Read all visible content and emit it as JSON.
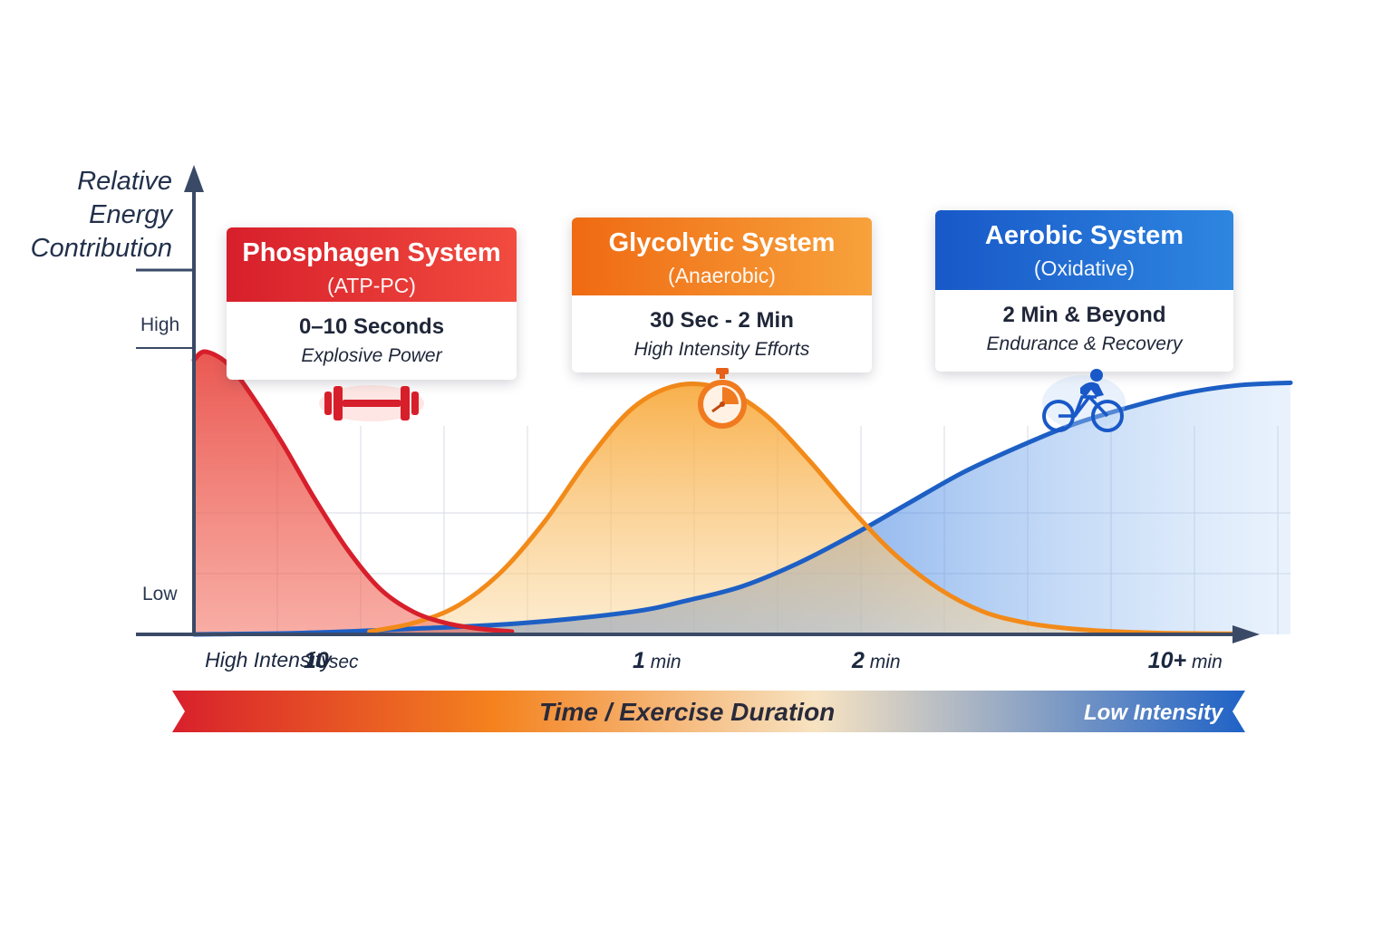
{
  "y_axis": {
    "title_lines": [
      "Relative",
      "Energy",
      "Contribution"
    ],
    "high_label": "High",
    "low_label": "Low"
  },
  "x_axis": {
    "ticks": [
      {
        "label": "High Intensity",
        "x": 0.01
      },
      {
        "label": "10",
        "suffix": "sec",
        "x": 0.1
      },
      {
        "label": "1",
        "suffix": "min",
        "x": 0.4
      },
      {
        "label": "2",
        "suffix": "min",
        "x": 0.6
      },
      {
        "label": "10+",
        "suffix": "min",
        "x": 0.87
      }
    ]
  },
  "bottom_banner": {
    "title": "Time / Exercise Duration",
    "right_label": "Low Intensity",
    "colors": [
      "#d8202c",
      "#f4821e",
      "#f7d9a6",
      "#1f62c6"
    ]
  },
  "cards": [
    {
      "id": "phosphagen",
      "title": "Phosphagen System",
      "subtitle": "(ATP-PC)",
      "range": "0–10 Seconds",
      "description": "Explosive Power",
      "color": "#d71f2b",
      "color2": "#f24b3f",
      "icon": "dumbbell-icon"
    },
    {
      "id": "glycolytic",
      "title": "Glycolytic System",
      "subtitle": "(Anaerobic)",
      "range": "30 Sec - 2 Min",
      "description": "High Intensity Efforts",
      "color": "#f06a12",
      "color2": "#f7a23c",
      "icon": "stopwatch-icon"
    },
    {
      "id": "aerobic",
      "title": "Aerobic System",
      "subtitle": "(Oxidative)",
      "range": "2 Min & Beyond",
      "description": "Endurance & Recovery",
      "color": "#1858c8",
      "color2": "#2e86e0",
      "icon": "cyclist-icon"
    }
  ],
  "chart_data": {
    "type": "area",
    "xlabel": "Time / Exercise Duration",
    "ylabel": "Relative Energy Contribution",
    "ylim": [
      0,
      1
    ],
    "x_range": [
      0,
      1
    ],
    "grid": true,
    "series": [
      {
        "name": "Phosphagen System",
        "color": "#d71f2b",
        "x": [
          0,
          0.01,
          0.03,
          0.05,
          0.08,
          0.11,
          0.14,
          0.17,
          0.2,
          0.23,
          0.26,
          0.29
        ],
        "values": [
          0.97,
          1.0,
          0.96,
          0.86,
          0.68,
          0.48,
          0.3,
          0.16,
          0.08,
          0.04,
          0.02,
          0.01
        ]
      },
      {
        "name": "Glycolytic System",
        "color": "#f28a1a",
        "x": [
          0.16,
          0.2,
          0.24,
          0.28,
          0.32,
          0.36,
          0.4,
          0.44,
          0.48,
          0.52,
          0.56,
          0.6,
          0.64,
          0.68,
          0.72,
          0.76,
          0.8,
          0.84,
          0.88,
          0.92,
          0.96
        ],
        "values": [
          0.01,
          0.04,
          0.1,
          0.22,
          0.4,
          0.62,
          0.8,
          0.88,
          0.87,
          0.78,
          0.62,
          0.44,
          0.28,
          0.16,
          0.08,
          0.04,
          0.02,
          0.01,
          0.005,
          0.003,
          0.002
        ]
      },
      {
        "name": "Aerobic System",
        "color": "#1d5fc4",
        "x": [
          0,
          0.1,
          0.2,
          0.3,
          0.4,
          0.45,
          0.5,
          0.55,
          0.6,
          0.65,
          0.7,
          0.75,
          0.8,
          0.85,
          0.9,
          0.95,
          1.0
        ],
        "values": [
          0.0,
          0.005,
          0.02,
          0.04,
          0.08,
          0.12,
          0.17,
          0.25,
          0.35,
          0.46,
          0.57,
          0.66,
          0.74,
          0.8,
          0.85,
          0.88,
          0.89
        ]
      }
    ]
  }
}
